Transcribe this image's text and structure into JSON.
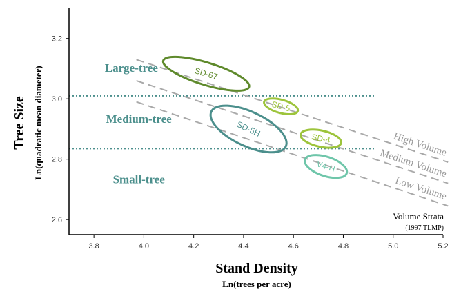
{
  "chart_data": {
    "type": "scatter",
    "xlabel": "Stand Density",
    "xlabel_sub": "Ln(trees per acre)",
    "ylabel": "Tree Size",
    "ylabel_sub": "Ln(quadratic mean diameter)",
    "xlim": [
      3.7,
      5.2
    ],
    "ylim": [
      2.55,
      3.3
    ],
    "x_ticks": [
      "3.8",
      "4.0",
      "4.2",
      "4.4",
      "4.6",
      "4.8",
      "5.0",
      "5.2"
    ],
    "y_ticks": [
      "2.6",
      "2.8",
      "3.0",
      "3.2"
    ],
    "size_classes": [
      {
        "label": "Large-tree",
        "color": "#4b8f8c",
        "x": 3.95,
        "y": 3.09
      },
      {
        "label": "Medium-tree",
        "color": "#4b8f8c",
        "x": 3.98,
        "y": 2.92
      },
      {
        "label": "Small-tree",
        "color": "#4b8f8c",
        "x": 3.98,
        "y": 2.72
      }
    ],
    "thresholds": [
      {
        "y": 3.01,
        "x_start": 3.7,
        "x_end": 4.93,
        "color": "#4b8f8c",
        "style": "dotted"
      },
      {
        "y": 2.835,
        "x_start": 3.7,
        "x_end": 4.93,
        "color": "#4b8f8c",
        "style": "dotted"
      }
    ],
    "strata_lines": [
      {
        "label": "High Volume",
        "x1": 3.97,
        "y1": 3.13,
        "x2": 5.22,
        "y2": 2.79
      },
      {
        "label": "Medium Volume",
        "x1": 3.97,
        "y1": 3.06,
        "x2": 5.22,
        "y2": 2.72
      },
      {
        "label": "Low Volume",
        "x1": 3.97,
        "y1": 2.99,
        "x2": 5.22,
        "y2": 2.645
      }
    ],
    "clusters": [
      {
        "label": "SD-67",
        "cx": 4.25,
        "cy": 3.083,
        "rx": 0.18,
        "ry": 0.037,
        "angle": 17,
        "color": "#5f8a2c"
      },
      {
        "label": "SD-5",
        "cx": 4.55,
        "cy": 2.975,
        "rx": 0.07,
        "ry": 0.022,
        "angle": 15,
        "color": "#9dc43c"
      },
      {
        "label": "SD-5H",
        "cx": 4.42,
        "cy": 2.9,
        "rx": 0.165,
        "ry": 0.057,
        "angle": 25,
        "color": "#4b8f8c"
      },
      {
        "label": "SD-4",
        "cx": 4.71,
        "cy": 2.868,
        "rx": 0.083,
        "ry": 0.027,
        "angle": 12,
        "color": "#9dc43c"
      },
      {
        "label": "V4-H",
        "cx": 4.73,
        "cy": 2.776,
        "rx": 0.088,
        "ry": 0.032,
        "angle": 18,
        "color": "#6fc6aa"
      }
    ],
    "annotation": {
      "title": "Volume Strata",
      "subtitle": "(1997 TLMP)"
    }
  }
}
